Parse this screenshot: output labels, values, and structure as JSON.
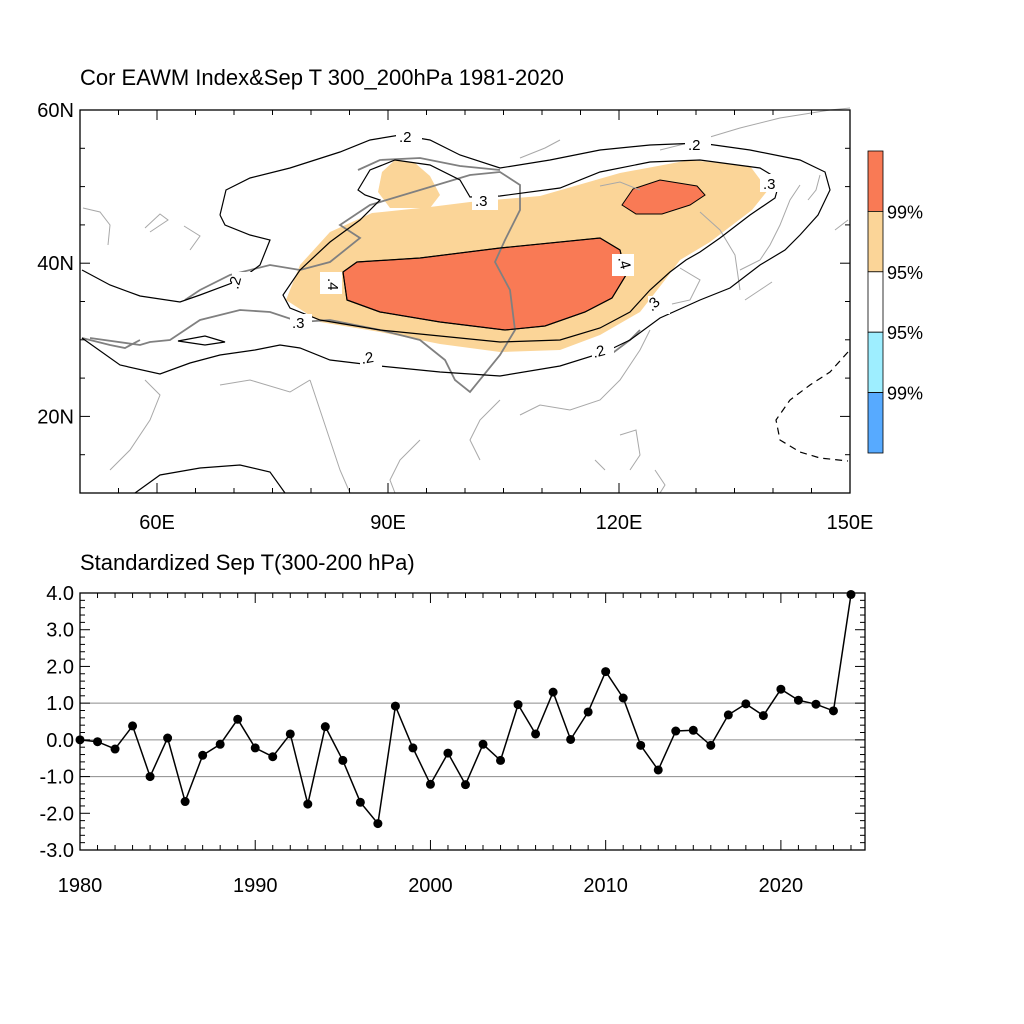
{
  "chart_data": [
    {
      "type": "heatmap",
      "title": "Cor EAWM Index&Sep T 300_200hPa 1981-2020",
      "x_ticks": [
        "60E",
        "90E",
        "120E",
        "150E"
      ],
      "x_tick_values": [
        60,
        90,
        120,
        150
      ],
      "y_ticks": [
        "60N",
        "40N",
        "20N"
      ],
      "y_tick_values": [
        60,
        40,
        20
      ],
      "xlim": [
        50,
        150
      ],
      "ylim": [
        10,
        60
      ],
      "contour_levels": [
        ".2",
        ".3",
        ".4",
        ".2",
        ".3",
        ".4",
        ".3",
        ".2",
        ".3",
        ".2",
        ".2"
      ],
      "colorbar": {
        "labels": [
          "99%",
          "95%",
          "95%",
          "99%"
        ],
        "colors": [
          "#f97a55",
          "#fbd598",
          "#ffffff",
          "#9eeeff",
          "#57aaff"
        ]
      }
    },
    {
      "type": "line",
      "title": "Standardized Sep T(300-200 hPa)",
      "x_ticks": [
        "1980",
        "1990",
        "2000",
        "2010",
        "2020"
      ],
      "x_tick_values": [
        1980,
        1990,
        2000,
        2010,
        2020
      ],
      "y_ticks": [
        "4.0",
        "3.0",
        "2.0",
        "1.0",
        "0.0",
        "-1.0",
        "-2.0",
        "-3.0"
      ],
      "y_tick_values": [
        4,
        3,
        2,
        1,
        0,
        -1,
        -2,
        -3
      ],
      "xlim": [
        1980,
        2024.8
      ],
      "ylim": [
        -3,
        4
      ],
      "gridlines_y": [
        1,
        0,
        -1
      ],
      "x": [
        1980,
        1981,
        1982,
        1983,
        1984,
        1985,
        1986,
        1987,
        1988,
        1989,
        1990,
        1991,
        1992,
        1993,
        1994,
        1995,
        1996,
        1997,
        1998,
        1999,
        2000,
        2001,
        2002,
        2003,
        2004,
        2005,
        2006,
        2007,
        2008,
        2009,
        2010,
        2011,
        2012,
        2013,
        2014,
        2015,
        2016,
        2017,
        2018,
        2019,
        2020,
        2021,
        2022,
        2023,
        2024
      ],
      "values": [
        0.0,
        -0.05,
        -0.25,
        0.38,
        -1.0,
        0.05,
        -1.68,
        -0.42,
        -0.12,
        0.56,
        -0.22,
        -0.46,
        0.16,
        -1.75,
        0.36,
        -0.56,
        -1.7,
        -2.28,
        0.92,
        -0.22,
        -1.21,
        -0.36,
        -1.22,
        -0.12,
        -0.56,
        0.96,
        0.16,
        1.3,
        0.01,
        0.76,
        1.86,
        1.14,
        -0.15,
        -0.82,
        0.24,
        0.26,
        -0.15,
        0.68,
        0.98,
        0.66,
        1.38,
        1.08,
        0.97,
        0.79,
        3.96
      ]
    }
  ]
}
